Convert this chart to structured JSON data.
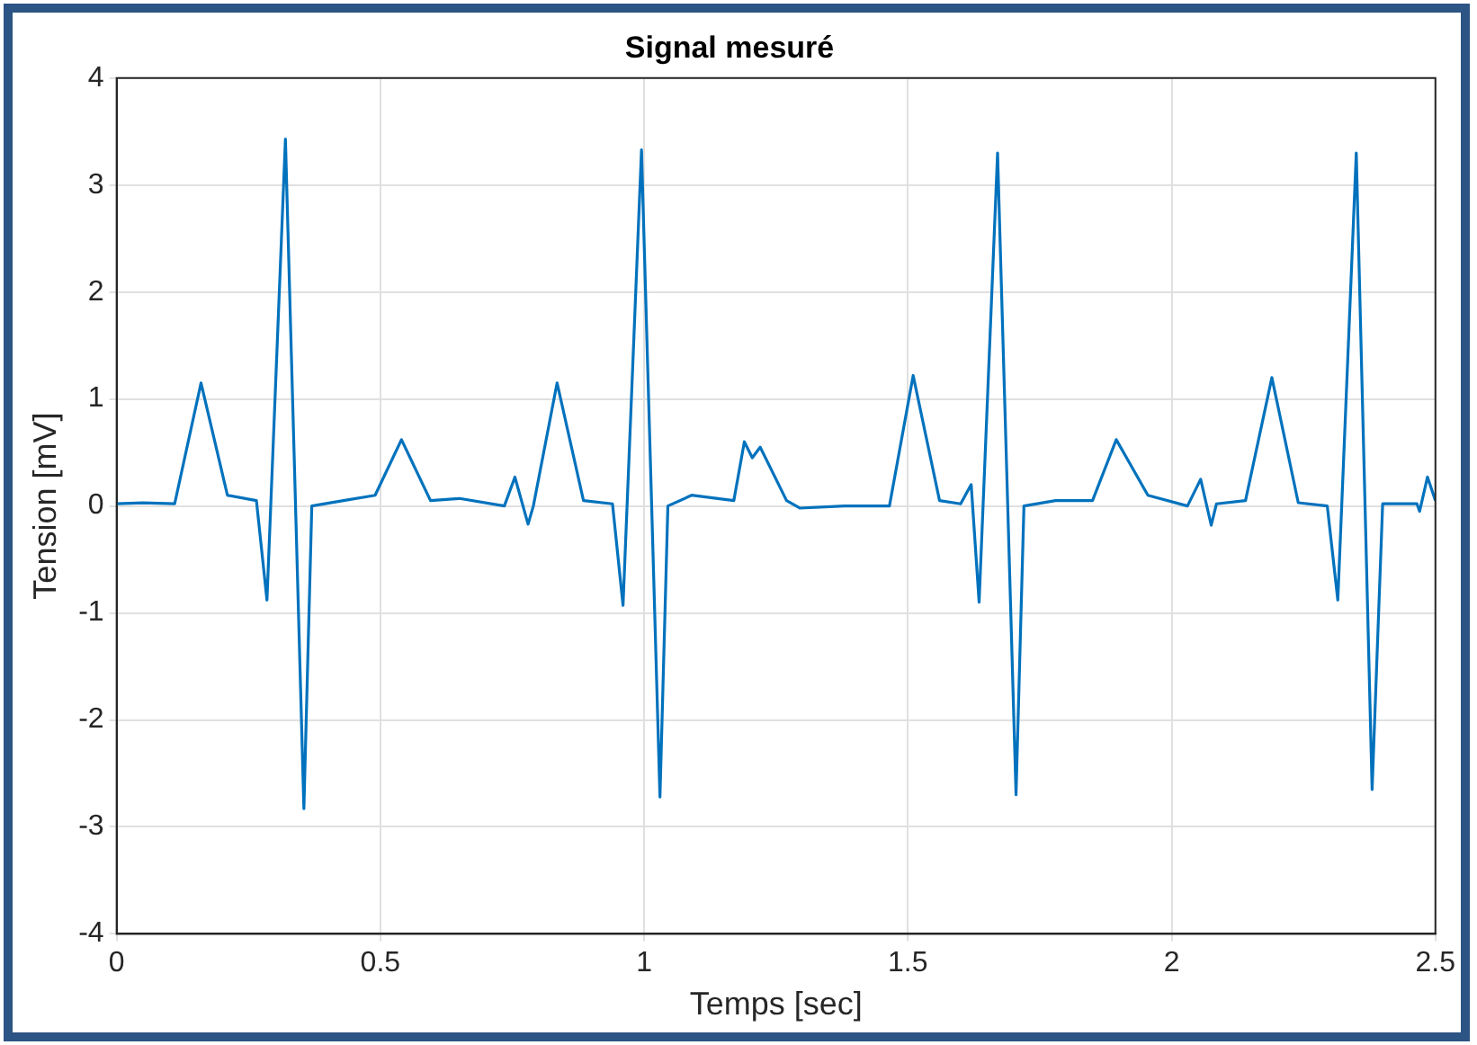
{
  "chart_data": {
    "type": "line",
    "title": "Signal mesuré",
    "xlabel": "Temps [sec]",
    "ylabel": "Tension [mV]",
    "x": [
      0,
      0.05,
      0.11,
      0.16,
      0.21,
      0.265,
      0.285,
      0.32,
      0.355,
      0.37,
      0.43,
      0.49,
      0.54,
      0.595,
      0.65,
      0.735,
      0.755,
      0.78,
      0.79,
      0.835,
      0.885,
      0.94,
      0.96,
      0.995,
      1.03,
      1.045,
      1.09,
      1.17,
      1.19,
      1.205,
      1.22,
      1.27,
      1.295,
      1.38,
      1.465,
      1.51,
      1.56,
      1.6,
      1.62,
      1.635,
      1.67,
      1.705,
      1.72,
      1.78,
      1.85,
      1.895,
      1.955,
      2.03,
      2.055,
      2.075,
      2.085,
      2.14,
      2.19,
      2.24,
      2.295,
      2.315,
      2.35,
      2.38,
      2.4,
      2.465,
      2.47,
      2.485,
      2.5
    ],
    "series": [
      {
        "color": "#0072bd",
        "values": [
          0.02,
          0.03,
          0.02,
          1.15,
          0.1,
          0.05,
          -0.88,
          3.43,
          -2.83,
          0.0,
          0.05,
          0.1,
          0.62,
          0.05,
          0.07,
          0.0,
          0.27,
          -0.17,
          0.0,
          1.15,
          0.05,
          0.02,
          -0.93,
          3.33,
          -2.72,
          0.0,
          0.1,
          0.05,
          0.6,
          0.45,
          0.55,
          0.05,
          -0.02,
          0.0,
          0.0,
          1.22,
          0.05,
          0.02,
          0.2,
          -0.9,
          3.3,
          -2.7,
          0.0,
          0.05,
          0.05,
          0.62,
          0.1,
          0.0,
          0.25,
          -0.18,
          0.02,
          0.05,
          1.2,
          0.03,
          0.0,
          -0.88,
          3.3,
          -2.65,
          0.02,
          0.02,
          -0.05,
          0.27,
          0.05
        ]
      }
    ],
    "xlim": [
      0,
      2.5
    ],
    "xticks": [
      0,
      0.5,
      1,
      1.5,
      2,
      2.5
    ],
    "ylim": [
      -4,
      4
    ],
    "yticks": [
      -4,
      -3,
      -2,
      -1,
      0,
      1,
      2,
      3,
      4
    ],
    "grid": true,
    "legend": false,
    "marker": "none",
    "line_style": "solid"
  }
}
